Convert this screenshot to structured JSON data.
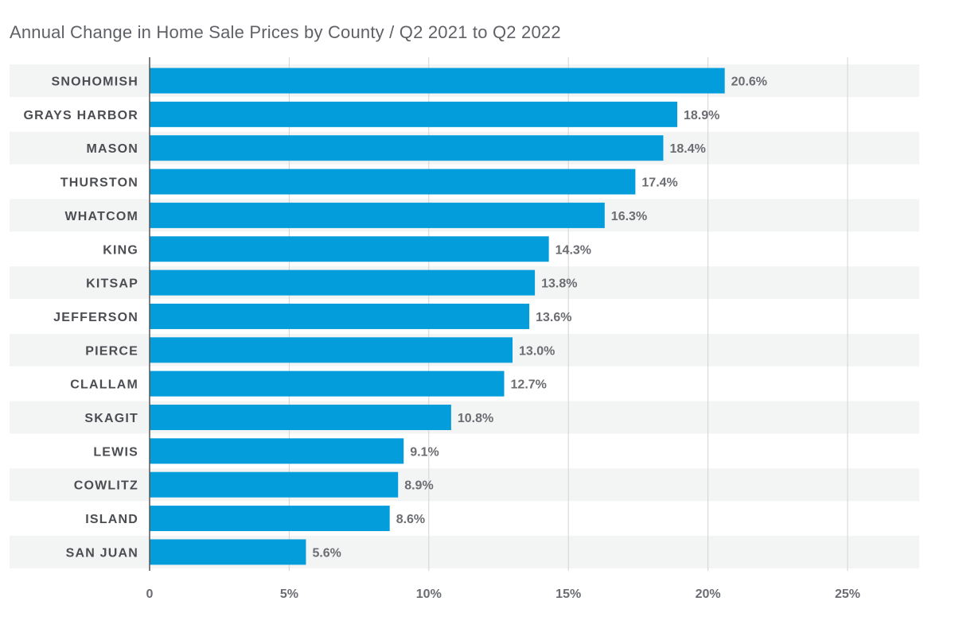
{
  "chart_data": {
    "type": "bar",
    "orientation": "horizontal",
    "title": "Annual Change in Home Sale Prices by County   /   Q2 2021 to Q2 2022",
    "categories": [
      "SNOHOMISH",
      "GRAYS HARBOR",
      "MASON",
      "THURSTON",
      "WHATCOM",
      "KING",
      "KITSAP",
      "JEFFERSON",
      "PIERCE",
      "CLALLAM",
      "SKAGIT",
      "LEWIS",
      "COWLITZ",
      "ISLAND",
      "SAN JUAN"
    ],
    "values": [
      20.6,
      18.9,
      18.4,
      17.4,
      16.3,
      14.3,
      13.8,
      13.6,
      13.0,
      12.7,
      10.8,
      9.1,
      8.9,
      8.6,
      5.6
    ],
    "value_labels": [
      "20.6%",
      "18.9%",
      "18.4%",
      "17.4%",
      "16.3%",
      "14.3%",
      "13.8%",
      "13.6%",
      "13.0%",
      "12.7%",
      "10.8%",
      "9.1%",
      "8.9%",
      "8.6%",
      "5.6%"
    ],
    "xlim": [
      0,
      27.5
    ],
    "x_ticks": [
      0,
      5,
      10,
      15,
      20,
      25
    ],
    "x_tick_labels": [
      "0",
      "5%",
      "10%",
      "15%",
      "20%",
      "25%"
    ],
    "grid": "vertical",
    "legend": "none",
    "colors": {
      "bar": "#039ddb",
      "row_band": "#f3f5f5",
      "gridline": "#d3d3d3",
      "axis": "#555555",
      "label_text": "#4b4d52",
      "value_text": "#6b6d72",
      "title_text": "#5f6166"
    }
  }
}
